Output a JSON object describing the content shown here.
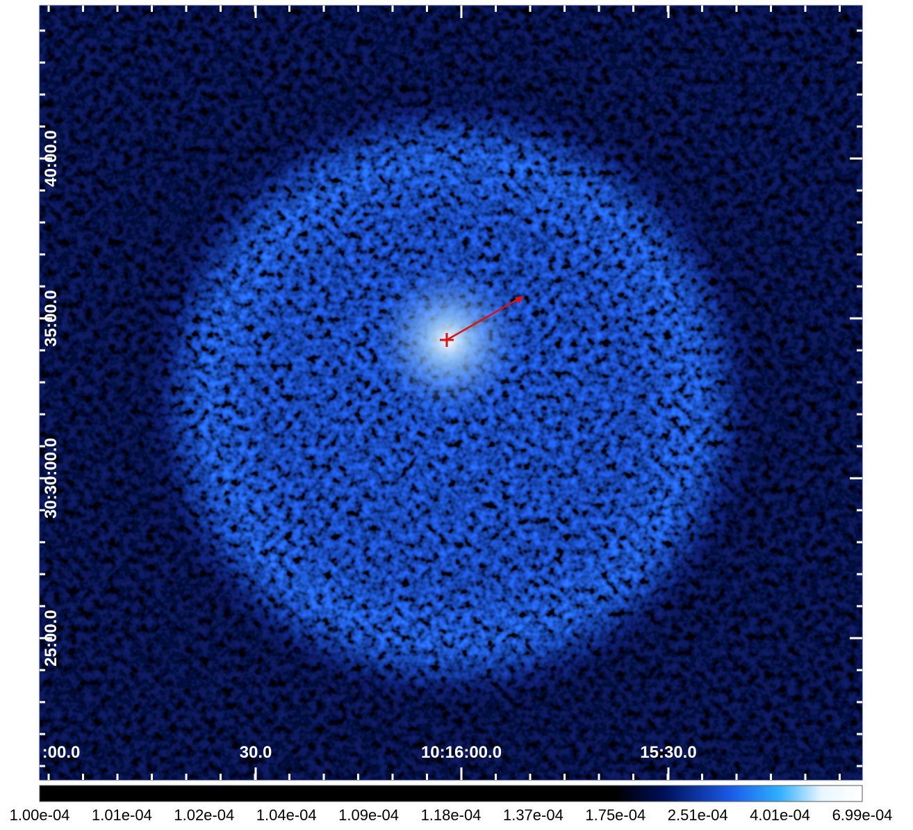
{
  "image": {
    "x_axis_labels": [
      ":00.0",
      "30.0",
      "10:16:00.0",
      "15:30.0"
    ],
    "y_axis_labels": [
      "40:00.0",
      "35:00.0",
      "30:30:00.0",
      "25:00.0"
    ]
  },
  "colorbar": {
    "labels": [
      "1.00e-04",
      "1.01e-04",
      "1.02e-04",
      "1.04e-04",
      "1.09e-04",
      "1.18e-04",
      "1.37e-04",
      "1.75e-04",
      "2.51e-04",
      "4.01e-04",
      "6.99e-04"
    ]
  }
}
